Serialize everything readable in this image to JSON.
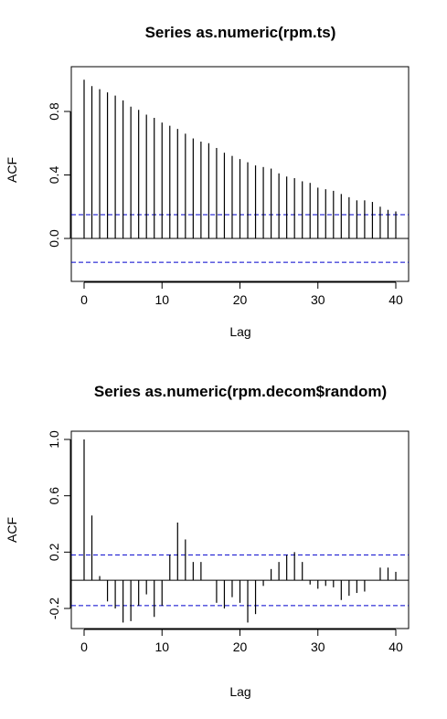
{
  "chart_data": [
    {
      "type": "acf",
      "title": "Series  as.numeric(rpm.ts)",
      "xlabel": "Lag",
      "ylabel": "ACF",
      "xlim": [
        0,
        40
      ],
      "ylim": [
        -0.15,
        1.0
      ],
      "x_ticks": [
        0,
        10,
        20,
        30,
        40
      ],
      "y_ticks": [
        0.0,
        0.4,
        0.8
      ],
      "y_tick_labels": [
        "0.0",
        "0.4",
        "0.8"
      ],
      "conf_limit": 0.15,
      "lags": [
        0,
        1,
        2,
        3,
        4,
        5,
        6,
        7,
        8,
        9,
        10,
        11,
        12,
        13,
        14,
        15,
        16,
        17,
        18,
        19,
        20,
        21,
        22,
        23,
        24,
        25,
        26,
        27,
        28,
        29,
        30,
        31,
        32,
        33,
        34,
        35,
        36,
        37,
        38,
        39,
        40
      ],
      "values": [
        1.0,
        0.96,
        0.94,
        0.92,
        0.9,
        0.87,
        0.83,
        0.81,
        0.78,
        0.76,
        0.73,
        0.71,
        0.69,
        0.66,
        0.63,
        0.61,
        0.6,
        0.57,
        0.54,
        0.52,
        0.5,
        0.48,
        0.46,
        0.45,
        0.44,
        0.41,
        0.39,
        0.38,
        0.36,
        0.35,
        0.32,
        0.31,
        0.3,
        0.28,
        0.26,
        0.24,
        0.24,
        0.23,
        0.2,
        0.18,
        0.17
      ],
      "line_color": "#000000",
      "conf_color": "#0000cd"
    },
    {
      "type": "acf",
      "title": "Series  as.numeric(rpm.decom$random)",
      "xlabel": "Lag",
      "ylabel": "ACF",
      "xlim": [
        0,
        40
      ],
      "ylim": [
        -0.37,
        1.05
      ],
      "x_ticks": [
        0,
        10,
        20,
        30,
        40
      ],
      "y_ticks": [
        -0.2,
        0.2,
        0.6,
        1.0
      ],
      "y_tick_labels": [
        "-0.2",
        "0.2",
        "0.6",
        "1.0"
      ],
      "conf_limit": 0.18,
      "lags": [
        0,
        1,
        2,
        3,
        4,
        5,
        6,
        7,
        8,
        9,
        10,
        11,
        12,
        13,
        14,
        15,
        16,
        17,
        18,
        19,
        20,
        21,
        22,
        23,
        24,
        25,
        26,
        27,
        28,
        29,
        30,
        31,
        32,
        33,
        34,
        35,
        36,
        37,
        38,
        39,
        40
      ],
      "values": [
        1.0,
        0.46,
        0.03,
        -0.15,
        -0.2,
        -0.3,
        -0.29,
        -0.18,
        -0.1,
        -0.26,
        -0.18,
        0.18,
        0.41,
        0.29,
        0.13,
        0.13,
        0.0,
        -0.16,
        -0.2,
        -0.12,
        -0.16,
        -0.3,
        -0.24,
        -0.04,
        0.08,
        0.13,
        0.18,
        0.2,
        0.13,
        -0.03,
        -0.06,
        -0.04,
        -0.05,
        -0.14,
        -0.11,
        -0.09,
        -0.08,
        0.0,
        0.09,
        0.09,
        0.06
      ],
      "line_color": "#000000",
      "conf_color": "#0000cd"
    }
  ]
}
